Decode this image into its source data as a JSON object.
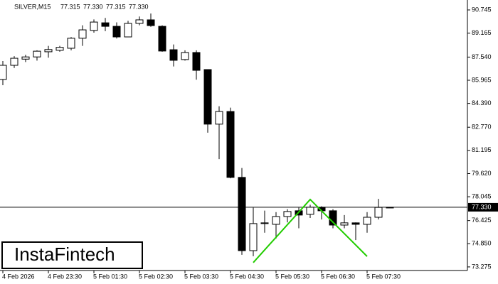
{
  "chart_data": {
    "type": "candlestick",
    "symbol": "SILVER,M15",
    "header_ohlc": [
      "77.315",
      "77.330",
      "77.315",
      "77.330"
    ],
    "logo": "InstaFintech",
    "categories": [
      "4 Feb 2026",
      null,
      null,
      null,
      "4 Feb 23:30",
      null,
      null,
      null,
      "5 Feb 01:30",
      null,
      null,
      null,
      "5 Feb 02:30",
      null,
      null,
      null,
      "5 Feb 03:30",
      null,
      null,
      null,
      "5 Feb 04:30",
      null,
      null,
      null,
      "5 Feb 05:30",
      null,
      null,
      null,
      "5 Feb 06:30",
      null,
      null,
      null,
      "5 Feb 07:30",
      null,
      null
    ],
    "open": [
      86.02,
      86.98,
      87.4,
      87.55,
      87.9,
      88.0,
      88.14,
      88.82,
      89.35,
      89.87,
      89.63,
      88.91,
      89.83,
      90.07,
      89.63,
      88.04,
      87.37,
      87.85,
      86.69,
      82.98,
      83.84,
      79.36,
      74.38,
      76.22,
      76.17,
      76.7,
      77.09,
      76.85,
      77.33,
      77.09,
      76.12,
      76.27,
      76.17,
      76.65,
      77.315
    ],
    "high": [
      87.27,
      87.6,
      87.7,
      88.0,
      88.3,
      88.3,
      88.9,
      89.7,
      90.1,
      90.2,
      89.9,
      90.0,
      90.3,
      90.5,
      89.7,
      88.4,
      88.0,
      88.0,
      86.7,
      84.2,
      84.1,
      80.0,
      77.3,
      77.1,
      77.0,
      77.2,
      77.3,
      77.5,
      77.4,
      77.2,
      76.8,
      76.3,
      77.0,
      77.9,
      77.33
    ],
    "low": [
      85.63,
      86.8,
      87.2,
      87.3,
      87.5,
      87.9,
      88.0,
      88.3,
      89.2,
      89.3,
      88.8,
      88.9,
      89.7,
      89.6,
      87.9,
      86.9,
      87.3,
      86.0,
      82.4,
      80.6,
      79.3,
      74.1,
      74.0,
      75.6,
      75.2,
      76.3,
      75.9,
      76.6,
      76.5,
      75.9,
      75.9,
      75.1,
      75.6,
      76.5,
      77.315
    ],
    "close": [
      86.98,
      87.46,
      87.55,
      87.94,
      88.05,
      88.2,
      88.82,
      89.39,
      89.92,
      89.63,
      88.91,
      89.83,
      90.07,
      89.68,
      87.95,
      87.32,
      87.85,
      86.64,
      82.98,
      83.84,
      79.36,
      74.38,
      76.22,
      76.27,
      76.7,
      77.04,
      76.8,
      77.33,
      77.09,
      76.12,
      76.27,
      76.17,
      76.65,
      77.32,
      77.33
    ],
    "ylim": [
      73.03,
      91.42
    ],
    "yticks": [
      90.745,
      89.165,
      {
        "value": 87.54,
        "label": "87.540"
      },
      85.965,
      {
        "value": 84.39,
        "label": "84.390"
      },
      {
        "value": 82.77,
        "label": "82.770"
      },
      81.195,
      {
        "value": 79.62,
        "label": "79.620"
      },
      78.045,
      76.425,
      {
        "value": 74.85,
        "label": "74.850"
      },
      73.275
    ],
    "current_price": {
      "value": 77.33,
      "label": "77.330"
    },
    "pattern": {
      "color": "#22cc00",
      "x": [
        22,
        27,
        32
      ],
      "values": [
        73.57,
        77.86,
        73.99
      ]
    }
  }
}
